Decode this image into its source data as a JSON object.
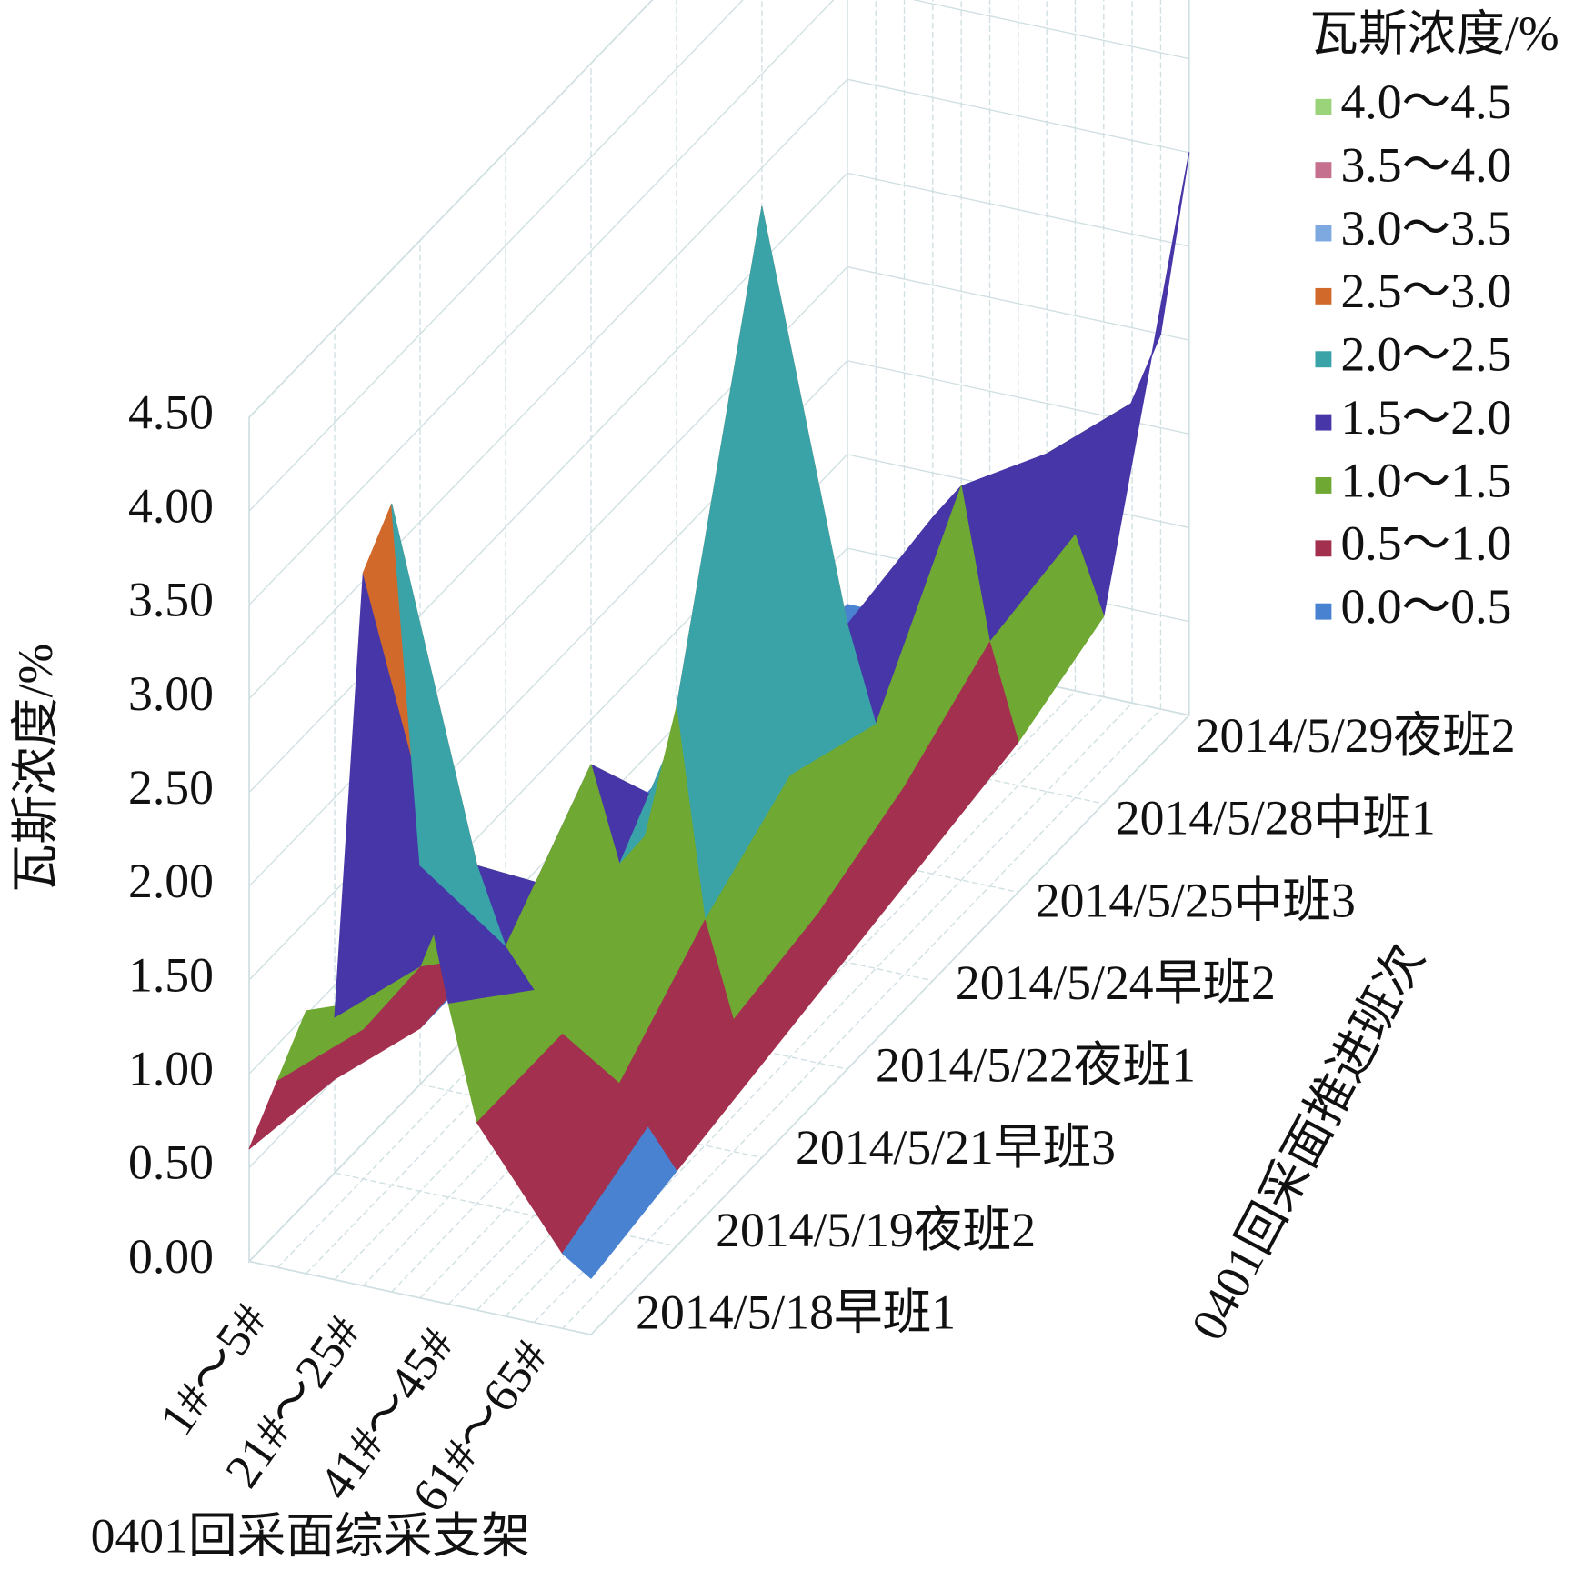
{
  "chart_data": {
    "type": "surface",
    "x_label": "0401回采面综采支架",
    "y_label": "0401回采面推进班次",
    "z_label": "瓦斯浓度/%",
    "x": [
      "1#～5#",
      null,
      null,
      null,
      "21#～25#",
      null,
      null,
      null,
      "41#～45#",
      null,
      null,
      null,
      "61#～65#"
    ],
    "y": [
      "2014/5/18早班1",
      "2014/5/19夜班2",
      "2014/5/21早班3",
      "2014/5/22夜班1",
      "2014/5/24早班2",
      "2014/5/25中班3",
      "2014/5/28中班1",
      "2014/5/29夜班2"
    ],
    "z": [
      [
        0.6,
        1.0,
        1.4,
        1.4,
        3.8,
        4.2,
        2.3,
        1.6,
        1.0,
        0.8,
        0.6,
        0.4,
        0.3
      ],
      [
        0.5,
        0.8,
        1.0,
        1.2,
        1.6,
        1.8,
        1.4,
        1.2,
        1.0,
        0.9,
        0.8,
        0.6,
        0.4
      ],
      [
        0.3,
        0.5,
        0.6,
        0.8,
        0.9,
        1.2,
        1.9,
        1.4,
        1.6,
        2.3,
        1.2,
        0.7,
        0.5
      ],
      [
        0.3,
        0.4,
        0.5,
        0.6,
        0.7,
        0.9,
        1.2,
        2.0,
        3.0,
        4.5,
        1.5,
        0.8,
        0.6
      ],
      [
        0.3,
        0.4,
        0.5,
        0.6,
        0.8,
        0.7,
        0.9,
        1.1,
        1.5,
        1.8,
        1.3,
        1.0,
        0.7
      ],
      [
        0.3,
        0.3,
        0.4,
        0.5,
        0.6,
        0.7,
        0.8,
        1.0,
        1.4,
        1.9,
        2.1,
        1.3,
        0.8
      ],
      [
        0.2,
        0.3,
        0.3,
        0.4,
        0.5,
        0.6,
        0.7,
        0.8,
        1.0,
        1.3,
        1.8,
        1.4,
        1.0
      ],
      [
        0.2,
        0.2,
        0.3,
        0.3,
        0.4,
        0.5,
        0.5,
        0.6,
        0.8,
        1.0,
        1.6,
        2.0,
        3.0
      ]
    ],
    "zlim": [
      0,
      4.5
    ],
    "zticks": [
      {
        "value": 0,
        "label": "0.00"
      },
      {
        "value": 0.5,
        "label": "0.50"
      },
      {
        "value": 1,
        "label": "1.00"
      },
      {
        "value": 1.5,
        "label": "1.50"
      },
      {
        "value": 2,
        "label": "2.00"
      },
      {
        "value": 2.5,
        "label": "2.50"
      },
      {
        "value": 3,
        "label": "3.00"
      },
      {
        "value": 3.5,
        "label": "3.50"
      },
      {
        "value": 4,
        "label": "4.00"
      },
      {
        "value": 4.5,
        "label": "4.50"
      }
    ],
    "legend": {
      "title": "瓦斯浓度/%",
      "items": [
        {
          "label": "4.0～4.5",
          "range": [
            4.0,
            4.5
          ],
          "color": "#9bd37a"
        },
        {
          "label": "3.5～4.0",
          "range": [
            3.5,
            4.0
          ],
          "color": "#c4708e"
        },
        {
          "label": "3.0～3.5",
          "range": [
            3.0,
            3.5
          ],
          "color": "#7ea9e0"
        },
        {
          "label": "2.5～3.0",
          "range": [
            2.5,
            3.0
          ],
          "color": "#d0692a"
        },
        {
          "label": "2.0～2.5",
          "range": [
            2.0,
            2.5
          ],
          "color": "#3aa3a8"
        },
        {
          "label": "1.5～2.0",
          "range": [
            1.5,
            2.0
          ],
          "color": "#4636a8"
        },
        {
          "label": "1.0～1.5",
          "range": [
            1.0,
            1.5
          ],
          "color": "#6fa832"
        },
        {
          "label": "0.5～1.0",
          "range": [
            0.5,
            1.0
          ],
          "color": "#a3304e"
        },
        {
          "label": "0.0～0.5",
          "range": [
            0.0,
            0.5
          ],
          "color": "#4a82d2"
        }
      ]
    }
  }
}
